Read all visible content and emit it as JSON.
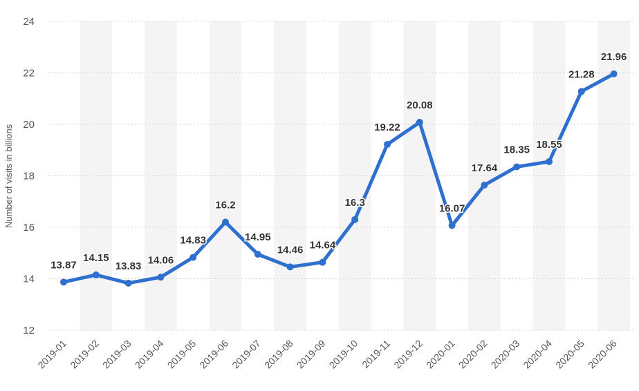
{
  "chart_data": {
    "type": "line",
    "title": "",
    "xlabel": "",
    "ylabel": "Number of visits in billions",
    "ylim": [
      12,
      24
    ],
    "yticks": [
      12,
      14,
      16,
      18,
      20,
      22,
      24
    ],
    "grid": true,
    "categories": [
      "2019-01",
      "2019-02",
      "2019-03",
      "2019-04",
      "2019-05",
      "2019-06",
      "2019-07",
      "2019-08",
      "2019-09",
      "2019-10",
      "2019-11",
      "2019-12",
      "2020-01",
      "2020-02",
      "2020-03",
      "2020-04",
      "2020-05",
      "2020-06"
    ],
    "series": [
      {
        "name": "Number of visits",
        "color": "#2f6fd0",
        "values": [
          13.87,
          14.15,
          13.83,
          14.06,
          14.83,
          16.2,
          14.95,
          14.46,
          14.64,
          16.3,
          19.22,
          20.08,
          16.07,
          17.64,
          18.35,
          18.55,
          21.28,
          21.96
        ],
        "labels": [
          "13.87",
          "14.15",
          "13.83",
          "14.06",
          "14.83",
          "16.2",
          "14.95",
          "14.46",
          "14.64",
          "16.3",
          "19.22",
          "20.08",
          "16.07",
          "17.64",
          "18.35",
          "18.55",
          "21.28",
          "21.96"
        ]
      }
    ]
  }
}
